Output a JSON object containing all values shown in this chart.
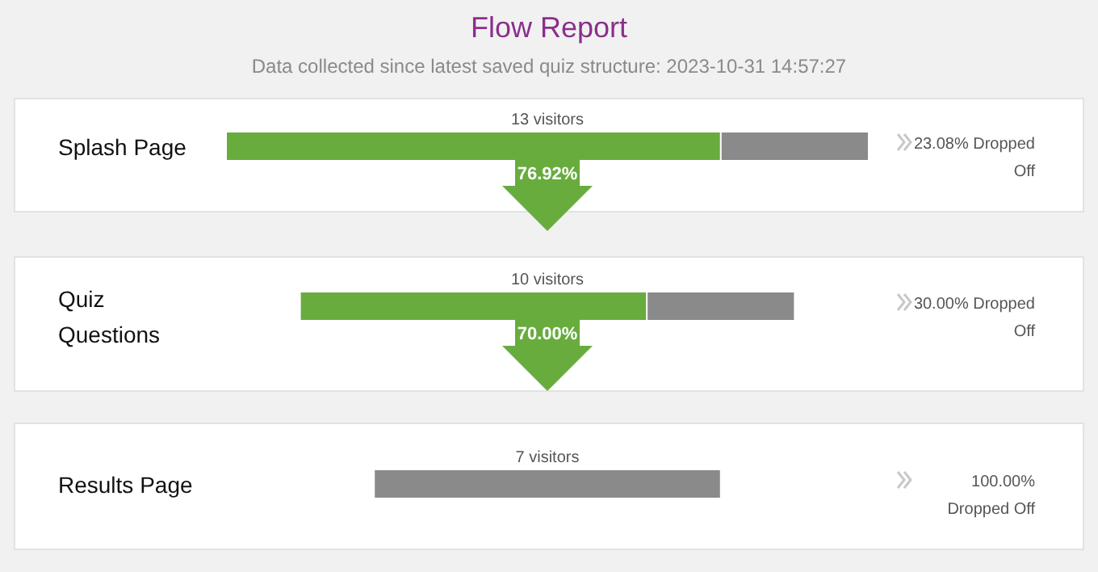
{
  "chart_data": {
    "type": "other",
    "title": "Flow Report",
    "subtitle": "Data collected since latest saved quiz structure: 2023-10-31 14:57:27",
    "categories": [
      "Splash Page",
      "Quiz Questions",
      "Results Page"
    ],
    "series": [
      {
        "values": [
          13,
          10,
          7
        ],
        "value_labels": [
          "13 visitors",
          "10 visitors",
          "7 visitors"
        ]
      },
      {
        "color": "#68ac3e",
        "values": [
          76.92,
          70.0,
          null
        ],
        "value_labels": [
          "76.92%",
          "70.00%",
          null
        ]
      },
      {
        "color": "#8a8a8a",
        "values": [
          23.08,
          30.0,
          100.0
        ],
        "value_labels": [
          "23.08% Dropped Off",
          "30.00% Dropped Off",
          "100.00% Dropped Off"
        ]
      }
    ]
  }
}
